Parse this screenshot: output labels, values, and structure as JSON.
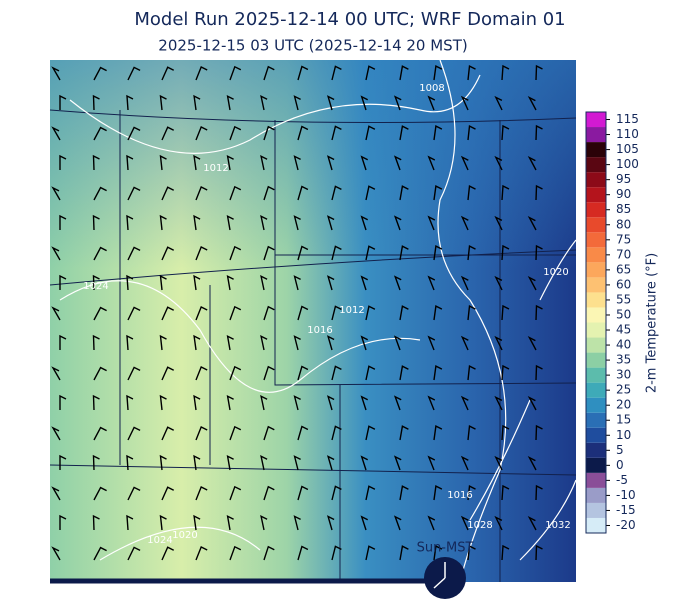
{
  "header": {
    "title": "Model Run 2025-12-14 00 UTC; WRF Domain 01",
    "subtitle": "2025-12-15 03 UTC  (2025-12-14 20 MST)"
  },
  "colorbar": {
    "label": "2-m Temperature (°F)",
    "lim": [
      -22.5,
      117.5
    ],
    "ticks": [
      -20,
      -15,
      -10,
      -5,
      0,
      5,
      10,
      15,
      20,
      25,
      30,
      35,
      40,
      45,
      50,
      55,
      60,
      65,
      70,
      75,
      80,
      85,
      90,
      95,
      100,
      105,
      110,
      115
    ],
    "colors": [
      "#d6ecf7",
      "#b4c4e0",
      "#9a9cc8",
      "#8a4e98",
      "#0c1a4a",
      "#1c2f7a",
      "#1f4d9e",
      "#2a6fb5",
      "#2f8fc0",
      "#3eaab8",
      "#5cbcac",
      "#8ccfa4",
      "#bde3a8",
      "#e4f2b0",
      "#fbf6b4",
      "#fde08e",
      "#fdc172",
      "#fca75c",
      "#f98a48",
      "#f36a3a",
      "#e84a2c",
      "#d62a22",
      "#b4141c",
      "#8c0a18",
      "#5a0612",
      "#2a0208",
      "#8a1aa0",
      "#d21ad2"
    ]
  },
  "isobar_labels": [
    "1008",
    "1012",
    "1020",
    "1024",
    "1012",
    "1016",
    "1016",
    "1028",
    "1032",
    "1024",
    "1020"
  ],
  "clock_label": "Sun-MST"
}
